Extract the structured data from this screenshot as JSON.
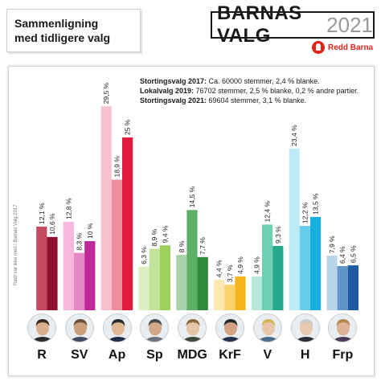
{
  "title": {
    "line1": "Sammenligning",
    "line2": "med tidligere valg"
  },
  "logo": {
    "word1": "BARNAS VALG",
    "word2": "2021"
  },
  "sponsor": {
    "label": "Redd Barna",
    "icon": "redd-barna-logo-icon"
  },
  "notes": [
    {
      "label": "Stortingsvalg 2017:",
      "text": " Ca. 60000 stemmer, 2,4 % blanke."
    },
    {
      "label": "Lokalvalg 2019:",
      "text": " 76702 stemmer, 2,5 % blanke, 0,2 % andre partier."
    },
    {
      "label": "Stortingsvalg 2021:",
      "text": " 69604 stemmer, 3,1 % blanke."
    }
  ],
  "side_note": "Rødt var ikke med i Barnas Valg 2017",
  "chart_data": {
    "type": "bar",
    "categories": [
      "R",
      "SV",
      "Ap",
      "Sp",
      "MDG",
      "KrF",
      "V",
      "H",
      "Frp"
    ],
    "series_order": [
      "Stortingsvalg 2017",
      "Lokalvalg 2019",
      "Stortingsvalg 2021"
    ],
    "values": [
      [
        null,
        12.1,
        10.6
      ],
      [
        12.8,
        8.3,
        10
      ],
      [
        29.5,
        18.9,
        25
      ],
      [
        6.3,
        8.9,
        9.4
      ],
      [
        8,
        14.5,
        7.7
      ],
      [
        4.4,
        3.7,
        4.9
      ],
      [
        4.9,
        12.4,
        9.3
      ],
      [
        23.4,
        12.2,
        13.5
      ],
      [
        7.9,
        6.4,
        6.5
      ]
    ],
    "labels": [
      [
        "",
        "12,1 %",
        "10,6 %"
      ],
      [
        "12,8 %",
        "8,3 %",
        "10 %"
      ],
      [
        "29,5 %",
        "18,9 %",
        "25 %"
      ],
      [
        "6,3 %",
        "8,9 %",
        "9,4 %"
      ],
      [
        "8 %",
        "14,5 %",
        "7,7 %"
      ],
      [
        "4,4 %",
        "3,7 %",
        "4,9 %"
      ],
      [
        "4,9 %",
        "12,4 %",
        "9,3 %"
      ],
      [
        "23,4 %",
        "12,2 %",
        "13,5 %"
      ],
      [
        "7,9 %",
        "6,4 %",
        "6,5 %"
      ]
    ],
    "colors": [
      [
        "#e8a0aa",
        "#c64a5f",
        "#8e1230"
      ],
      [
        "#f6b8dc",
        "#e489c6",
        "#c0289a"
      ],
      [
        "#f9c1ce",
        "#ef8c9e",
        "#e01b3c"
      ],
      [
        "#dcf0c4",
        "#c1e49a",
        "#9dd15c"
      ],
      [
        "#a8d3aa",
        "#5daf66",
        "#2f8a3d"
      ],
      [
        "#fde8b0",
        "#fbd36c",
        "#f4b41d"
      ],
      [
        "#b9e7da",
        "#6fcfb4",
        "#26a88a"
      ],
      [
        "#bdeaf7",
        "#66cdea",
        "#19aee0"
      ],
      [
        "#b9d4ea",
        "#5f95c9",
        "#1e5aa0"
      ]
    ],
    "ylim": [
      0,
      30
    ],
    "grid": false,
    "legend": "none"
  },
  "avatars": [
    "portrait-r",
    "portrait-sv",
    "portrait-ap",
    "portrait-sp",
    "portrait-mdg",
    "portrait-krf",
    "portrait-v",
    "portrait-h",
    "portrait-frp"
  ]
}
